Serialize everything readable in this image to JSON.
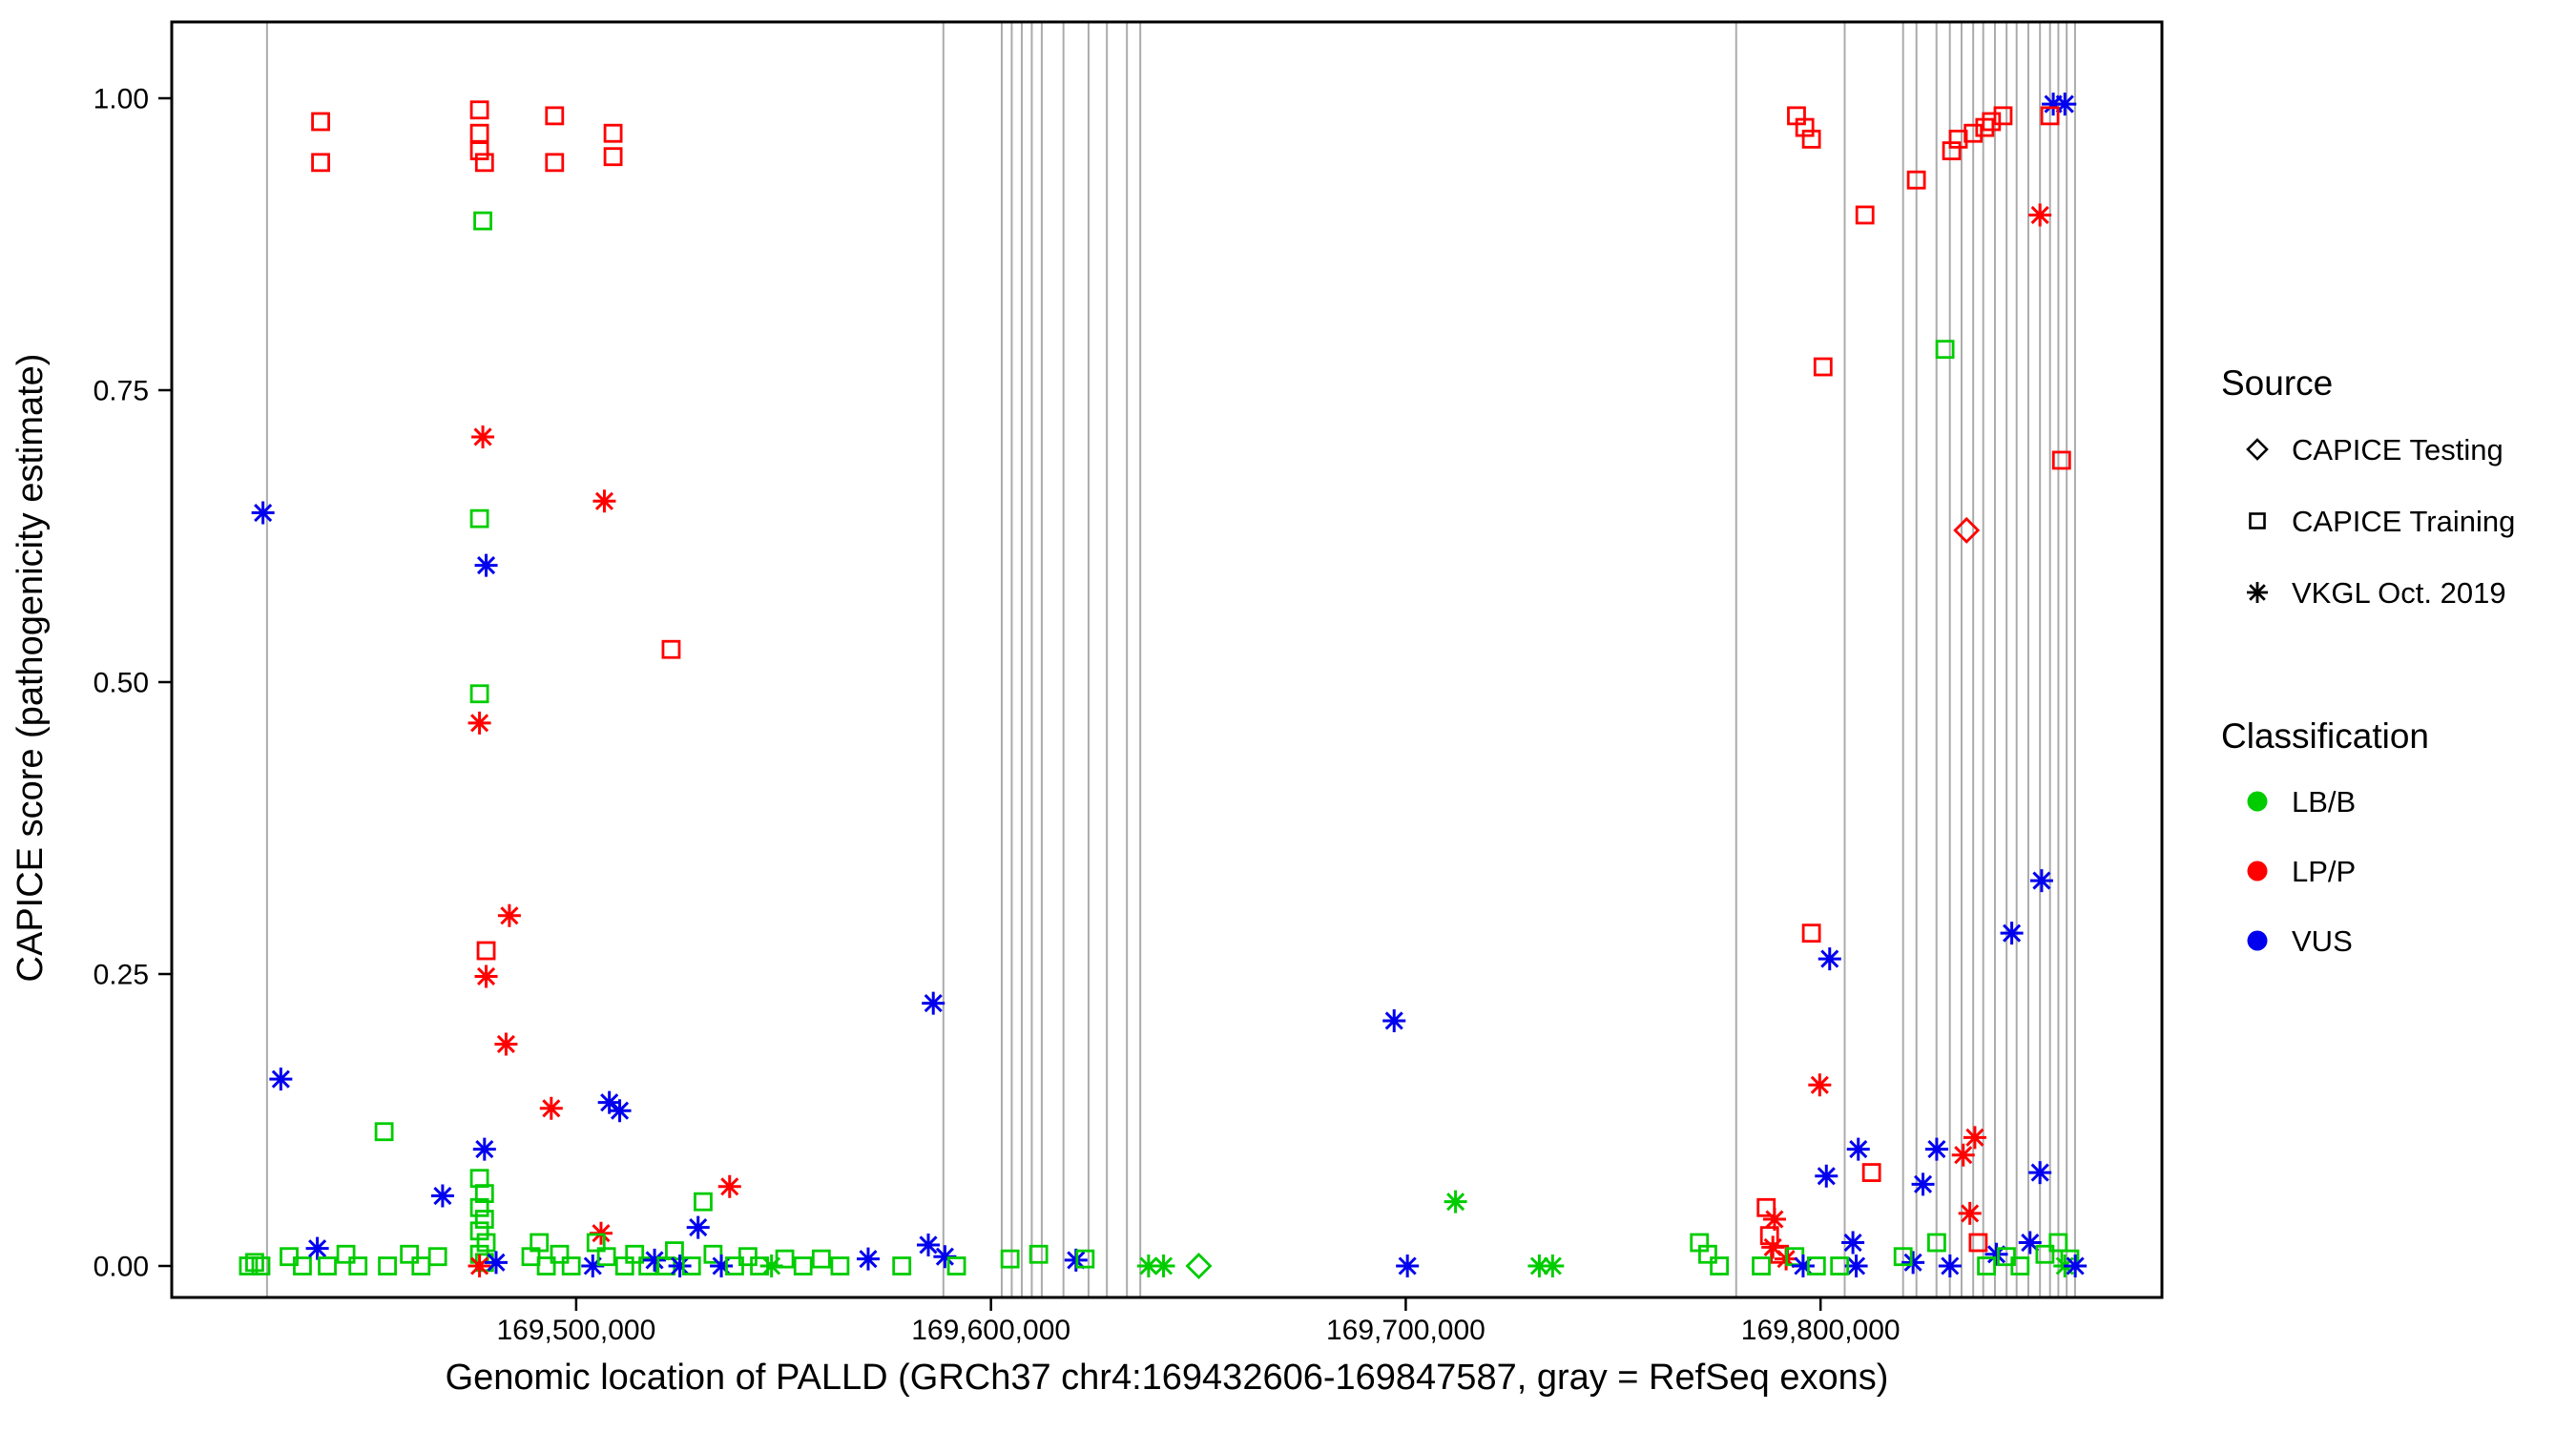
{
  "chart_data": {
    "type": "scatter",
    "title": "",
    "xlabel": "Genomic location of PALLD (GRCh37 chr4:169432606-169847587, gray = RefSeq exons)",
    "ylabel": "CAPICE score (pathogenicity estimate)",
    "xlim": [
      169402500,
      169882300
    ],
    "ylim": [
      0.0,
      1.0
    ],
    "grid": "off",
    "legend_position": "right",
    "x_ticks": [
      {
        "bp": 169500000,
        "label": "169,500,000"
      },
      {
        "bp": 169600000,
        "label": "169,600,000"
      },
      {
        "bp": 169700000,
        "label": "169,700,000"
      },
      {
        "bp": 169800000,
        "label": "169,800,000"
      }
    ],
    "y_ticks": [
      {
        "value": 0.0,
        "label": "0.00"
      },
      {
        "value": 0.25,
        "label": "0.25"
      },
      {
        "value": 0.5,
        "label": "0.50"
      },
      {
        "value": 0.75,
        "label": "0.75"
      },
      {
        "value": 1.0,
        "label": "1.00"
      }
    ],
    "exon_color": "#ABABAB",
    "class_colors": {
      "LB/B": "#00CC00",
      "LP/P": "#FF0000",
      "VUS": "#0000EE"
    },
    "shape_to_source": {
      "diamond": "CAPICE Testing",
      "square": "CAPICE Training",
      "asterisk": "VKGL Oct. 2019"
    },
    "legend": {
      "source": {
        "title": "Source",
        "items": [
          {
            "shape": "diamond",
            "label": "CAPICE Testing"
          },
          {
            "shape": "square",
            "label": "CAPICE Training"
          },
          {
            "shape": "asterisk",
            "label": "VKGL Oct. 2019"
          }
        ]
      },
      "classification": {
        "title": "Classification",
        "items": [
          {
            "class": "LB/B",
            "label": "LB/B",
            "color": "#00CC00"
          },
          {
            "class": "LP/P",
            "label": "LP/P",
            "color": "#FF0000"
          },
          {
            "class": "VUS",
            "label": "VUS",
            "color": "#0000EE"
          }
        ]
      }
    },
    "refseq_exons_bp": [
      169425470,
      169588530,
      169602600,
      169605010,
      169607430,
      169609840,
      169612250,
      169617480,
      169623520,
      169627950,
      169632780,
      169636000,
      169779660,
      169805820,
      169819900,
      169823120,
      169827950,
      169831170,
      169833990,
      169836800,
      169839220,
      169842040,
      169844850,
      169847270,
      169850090,
      169852900,
      169855320,
      169857330,
      169859340,
      169861350
    ],
    "point_fields": [
      "genomic_position_bp",
      "capice_score",
      "classification",
      "source_shape"
    ],
    "points": [
      [
        169421000,
        0.0,
        "LB/B",
        "square"
      ],
      [
        169422500,
        0.003,
        "LB/B",
        "square"
      ],
      [
        169424000,
        0.0,
        "LB/B",
        "square"
      ],
      [
        169424500,
        0.645,
        "VUS",
        "asterisk"
      ],
      [
        169428800,
        0.16,
        "VUS",
        "asterisk"
      ],
      [
        169430800,
        0.008,
        "LB/B",
        "square"
      ],
      [
        169434000,
        0.0,
        "LB/B",
        "square"
      ],
      [
        169437600,
        0.015,
        "VUS",
        "asterisk"
      ],
      [
        169438400,
        0.98,
        "LP/P",
        "square"
      ],
      [
        169438400,
        0.945,
        "LP/P",
        "square"
      ],
      [
        169440000,
        0.0,
        "LB/B",
        "square"
      ],
      [
        169444500,
        0.01,
        "LB/B",
        "square"
      ],
      [
        169447400,
        0.0,
        "LB/B",
        "square"
      ],
      [
        169453700,
        0.115,
        "LB/B",
        "square"
      ],
      [
        169454500,
        0.0,
        "LB/B",
        "square"
      ],
      [
        169459800,
        0.01,
        "LB/B",
        "square"
      ],
      [
        169462600,
        0.0,
        "LB/B",
        "square"
      ],
      [
        169466600,
        0.008,
        "LB/B",
        "square"
      ],
      [
        169467800,
        0.06,
        "VUS",
        "asterisk"
      ],
      [
        169476700,
        0.99,
        "LP/P",
        "square"
      ],
      [
        169476700,
        0.97,
        "LP/P",
        "square"
      ],
      [
        169476700,
        0.955,
        "LP/P",
        "square"
      ],
      [
        169477900,
        0.945,
        "LP/P",
        "square"
      ],
      [
        169477500,
        0.895,
        "LB/B",
        "square"
      ],
      [
        169477500,
        0.71,
        "LP/P",
        "asterisk"
      ],
      [
        169476700,
        0.64,
        "LB/B",
        "square"
      ],
      [
        169478300,
        0.6,
        "VUS",
        "asterisk"
      ],
      [
        169476700,
        0.49,
        "LB/B",
        "square"
      ],
      [
        169476700,
        0.465,
        "LP/P",
        "asterisk"
      ],
      [
        169478300,
        0.27,
        "LP/P",
        "square"
      ],
      [
        169478300,
        0.248,
        "LP/P",
        "asterisk"
      ],
      [
        169483900,
        0.3,
        "LP/P",
        "asterisk"
      ],
      [
        169483100,
        0.19,
        "LP/P",
        "asterisk"
      ],
      [
        169477900,
        0.1,
        "VUS",
        "asterisk"
      ],
      [
        169476700,
        0.075,
        "LB/B",
        "square"
      ],
      [
        169477900,
        0.062,
        "LB/B",
        "square"
      ],
      [
        169476700,
        0.05,
        "LB/B",
        "square"
      ],
      [
        169477900,
        0.04,
        "LB/B",
        "square"
      ],
      [
        169476700,
        0.03,
        "LB/B",
        "square"
      ],
      [
        169478300,
        0.02,
        "LB/B",
        "square"
      ],
      [
        169476700,
        0.01,
        "LB/B",
        "square"
      ],
      [
        169477900,
        0.003,
        "LB/B",
        "square"
      ],
      [
        169476700,
        0.0,
        "LP/P",
        "asterisk"
      ],
      [
        169480700,
        0.003,
        "VUS",
        "asterisk"
      ],
      [
        169494800,
        0.985,
        "LP/P",
        "square"
      ],
      [
        169494800,
        0.945,
        "LP/P",
        "square"
      ],
      [
        169494000,
        0.135,
        "LP/P",
        "asterisk"
      ],
      [
        169491100,
        0.02,
        "LB/B",
        "square"
      ],
      [
        169489100,
        0.008,
        "LB/B",
        "square"
      ],
      [
        169492800,
        0.0,
        "LB/B",
        "square"
      ],
      [
        169496000,
        0.01,
        "LB/B",
        "square"
      ],
      [
        169498800,
        0.0,
        "LB/B",
        "square"
      ],
      [
        169504000,
        0.0,
        "VUS",
        "asterisk"
      ],
      [
        169506000,
        0.028,
        "LP/P",
        "asterisk"
      ],
      [
        169508900,
        0.97,
        "LP/P",
        "square"
      ],
      [
        169508900,
        0.95,
        "LP/P",
        "square"
      ],
      [
        169506800,
        0.655,
        "LP/P",
        "asterisk"
      ],
      [
        169508000,
        0.14,
        "VUS",
        "asterisk"
      ],
      [
        169510500,
        0.133,
        "VUS",
        "asterisk"
      ],
      [
        169504800,
        0.02,
        "LB/B",
        "square"
      ],
      [
        169507300,
        0.008,
        "LB/B",
        "square"
      ],
      [
        169511700,
        0.0,
        "LB/B",
        "square"
      ],
      [
        169514100,
        0.01,
        "LB/B",
        "square"
      ],
      [
        169517300,
        0.0,
        "LB/B",
        "square"
      ],
      [
        169518900,
        0.005,
        "VUS",
        "asterisk"
      ],
      [
        169521700,
        0.0,
        "LB/B",
        "square"
      ],
      [
        169522900,
        0.528,
        "LP/P",
        "square"
      ],
      [
        169523700,
        0.013,
        "LB/B",
        "square"
      ],
      [
        169525000,
        0.0,
        "VUS",
        "asterisk"
      ],
      [
        169529400,
        0.033,
        "VUS",
        "asterisk"
      ],
      [
        169530600,
        0.055,
        "LB/B",
        "square"
      ],
      [
        169527800,
        0.0,
        "LB/B",
        "square"
      ],
      [
        169533000,
        0.01,
        "LB/B",
        "square"
      ],
      [
        169535000,
        0.0,
        "VUS",
        "asterisk"
      ],
      [
        169537000,
        0.068,
        "LP/P",
        "asterisk"
      ],
      [
        169538200,
        0.0,
        "LB/B",
        "square"
      ],
      [
        169541400,
        0.008,
        "LB/B",
        "square"
      ],
      [
        169544200,
        0.0,
        "LB/B",
        "square"
      ],
      [
        169547100,
        0.0,
        "LB/B",
        "asterisk"
      ],
      [
        169550300,
        0.006,
        "LB/B",
        "square"
      ],
      [
        169554700,
        0.0,
        "LB/B",
        "square"
      ],
      [
        169559100,
        0.006,
        "LB/B",
        "square"
      ],
      [
        169563600,
        0.0,
        "LB/B",
        "square"
      ],
      [
        169570400,
        0.006,
        "VUS",
        "asterisk"
      ],
      [
        169578500,
        0.0,
        "LB/B",
        "square"
      ],
      [
        169586100,
        0.225,
        "VUS",
        "asterisk"
      ],
      [
        169584900,
        0.018,
        "VUS",
        "asterisk"
      ],
      [
        169588900,
        0.008,
        "VUS",
        "asterisk"
      ],
      [
        169591700,
        0.0,
        "LB/B",
        "square"
      ],
      [
        169604600,
        0.006,
        "LB/B",
        "square"
      ],
      [
        169611500,
        0.01,
        "LB/B",
        "square"
      ],
      [
        169620500,
        0.005,
        "VUS",
        "asterisk"
      ],
      [
        169622700,
        0.006,
        "LB/B",
        "square"
      ],
      [
        169638000,
        0.0,
        "LB/B",
        "asterisk"
      ],
      [
        169641600,
        0.0,
        "LB/B",
        "asterisk"
      ],
      [
        169650100,
        0.0,
        "LB/B",
        "diamond"
      ],
      [
        169697200,
        0.21,
        "VUS",
        "asterisk"
      ],
      [
        169700400,
        0.0,
        "VUS",
        "asterisk"
      ],
      [
        169712000,
        0.055,
        "LB/B",
        "asterisk"
      ],
      [
        169732200,
        0.0,
        "LB/B",
        "asterisk"
      ],
      [
        169735400,
        0.0,
        "LB/B",
        "asterisk"
      ],
      [
        169770800,
        0.02,
        "LB/B",
        "square"
      ],
      [
        169772800,
        0.01,
        "LB/B",
        "square"
      ],
      [
        169775600,
        0.0,
        "LB/B",
        "square"
      ],
      [
        169786900,
        0.05,
        "LP/P",
        "square"
      ],
      [
        169788900,
        0.04,
        "LP/P",
        "asterisk"
      ],
      [
        169787700,
        0.026,
        "LP/P",
        "square"
      ],
      [
        169788500,
        0.016,
        "LP/P",
        "asterisk"
      ],
      [
        169790100,
        0.01,
        "LP/P",
        "square"
      ],
      [
        169791700,
        0.006,
        "LP/P",
        "asterisk"
      ],
      [
        169785700,
        0.0,
        "LB/B",
        "square"
      ],
      [
        169793800,
        0.008,
        "LB/B",
        "square"
      ],
      [
        169795800,
        0.0,
        "VUS",
        "asterisk"
      ],
      [
        169799000,
        0.0,
        "LB/B",
        "square"
      ],
      [
        169794200,
        0.985,
        "LP/P",
        "square"
      ],
      [
        169796200,
        0.975,
        "LP/P",
        "square"
      ],
      [
        169797800,
        0.965,
        "LP/P",
        "square"
      ],
      [
        169800600,
        0.77,
        "LP/P",
        "square"
      ],
      [
        169797800,
        0.285,
        "LP/P",
        "square"
      ],
      [
        169802200,
        0.263,
        "VUS",
        "asterisk"
      ],
      [
        169799800,
        0.155,
        "LP/P",
        "asterisk"
      ],
      [
        169801400,
        0.077,
        "VUS",
        "asterisk"
      ],
      [
        169809100,
        0.1,
        "VUS",
        "asterisk"
      ],
      [
        169812300,
        0.08,
        "LP/P",
        "square"
      ],
      [
        169810700,
        0.9,
        "LP/P",
        "square"
      ],
      [
        169807800,
        0.02,
        "VUS",
        "asterisk"
      ],
      [
        169808600,
        0.0,
        "VUS",
        "asterisk"
      ],
      [
        169804600,
        0.0,
        "LB/B",
        "square"
      ],
      [
        169823100,
        0.93,
        "LP/P",
        "square"
      ],
      [
        169824700,
        0.07,
        "VUS",
        "asterisk"
      ],
      [
        169822300,
        0.003,
        "VUS",
        "asterisk"
      ],
      [
        169819900,
        0.008,
        "LB/B",
        "square"
      ],
      [
        169828000,
        0.02,
        "LB/B",
        "square"
      ],
      [
        169828000,
        0.1,
        "VUS",
        "asterisk"
      ],
      [
        169830000,
        0.785,
        "LB/B",
        "square"
      ],
      [
        169831200,
        0.0,
        "VUS",
        "asterisk"
      ],
      [
        169834400,
        0.095,
        "LP/P",
        "asterisk"
      ],
      [
        169837200,
        0.11,
        "LP/P",
        "asterisk"
      ],
      [
        169836000,
        0.045,
        "LP/P",
        "asterisk"
      ],
      [
        169835200,
        0.63,
        "LP/P",
        "diamond"
      ],
      [
        169831600,
        0.955,
        "LP/P",
        "square"
      ],
      [
        169833200,
        0.965,
        "LP/P",
        "square"
      ],
      [
        169836800,
        0.97,
        "LP/P",
        "square"
      ],
      [
        169839600,
        0.975,
        "LP/P",
        "square"
      ],
      [
        169841200,
        0.98,
        "LP/P",
        "square"
      ],
      [
        169844000,
        0.985,
        "LP/P",
        "square"
      ],
      [
        169852900,
        0.9,
        "LP/P",
        "asterisk"
      ],
      [
        169858100,
        0.69,
        "LP/P",
        "square"
      ],
      [
        169853300,
        0.33,
        "VUS",
        "asterisk"
      ],
      [
        169846100,
        0.285,
        "VUS",
        "asterisk"
      ],
      [
        169852900,
        0.08,
        "VUS",
        "asterisk"
      ],
      [
        169856100,
        0.995,
        "VUS",
        "asterisk"
      ],
      [
        169858900,
        0.995,
        "VUS",
        "asterisk"
      ],
      [
        169855300,
        0.985,
        "LP/P",
        "square"
      ],
      [
        169850500,
        0.02,
        "VUS",
        "asterisk"
      ],
      [
        169842400,
        0.01,
        "VUS",
        "asterisk"
      ],
      [
        169838000,
        0.02,
        "LP/P",
        "square"
      ],
      [
        169840000,
        0.0,
        "LB/B",
        "square"
      ],
      [
        169844800,
        0.008,
        "LB/B",
        "square"
      ],
      [
        169848100,
        0.0,
        "LB/B",
        "square"
      ],
      [
        169854100,
        0.01,
        "LB/B",
        "square"
      ],
      [
        169857300,
        0.02,
        "LB/B",
        "square"
      ],
      [
        169858900,
        0.0,
        "LB/B",
        "asterisk"
      ],
      [
        169860100,
        0.006,
        "LB/B",
        "square"
      ],
      [
        169861400,
        0.0,
        "VUS",
        "asterisk"
      ]
    ]
  }
}
